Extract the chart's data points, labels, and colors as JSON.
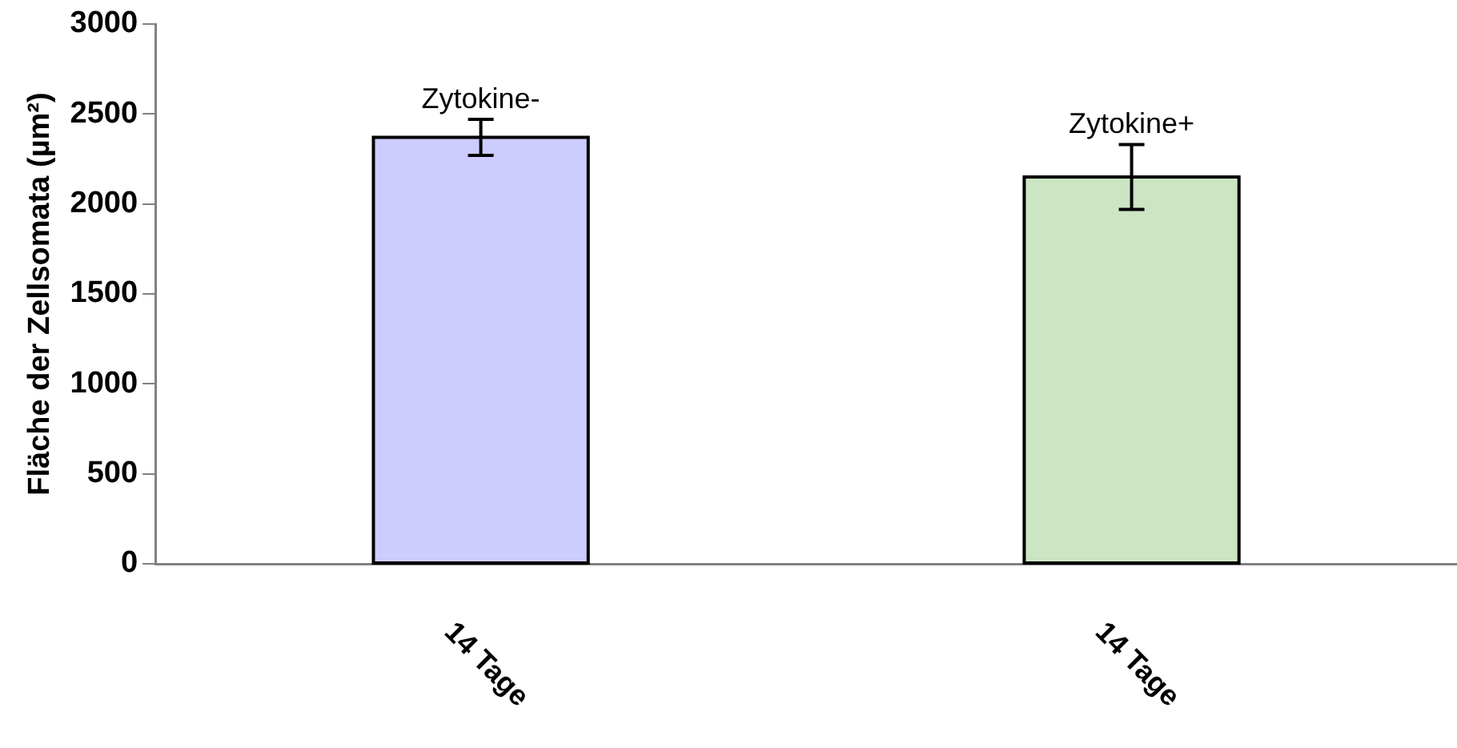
{
  "chart_data": {
    "type": "bar",
    "ylabel": "Fläche der Zellsomata (µm²)",
    "categories": [
      "14 Tage",
      "14 Tage"
    ],
    "series": [
      {
        "name": "Zytokine-",
        "color": "#ccccff",
        "values": [
          2370,
          null
        ],
        "errors": [
          100,
          null
        ]
      },
      {
        "name": "Zytokine+",
        "color": "#cce6c4",
        "values": [
          null,
          2150
        ],
        "errors": [
          null,
          180
        ]
      }
    ],
    "ylim": [
      0,
      3000
    ],
    "yticks": [
      0,
      500,
      1000,
      1500,
      2000,
      2500,
      3000
    ],
    "grid": false,
    "legend": false
  }
}
